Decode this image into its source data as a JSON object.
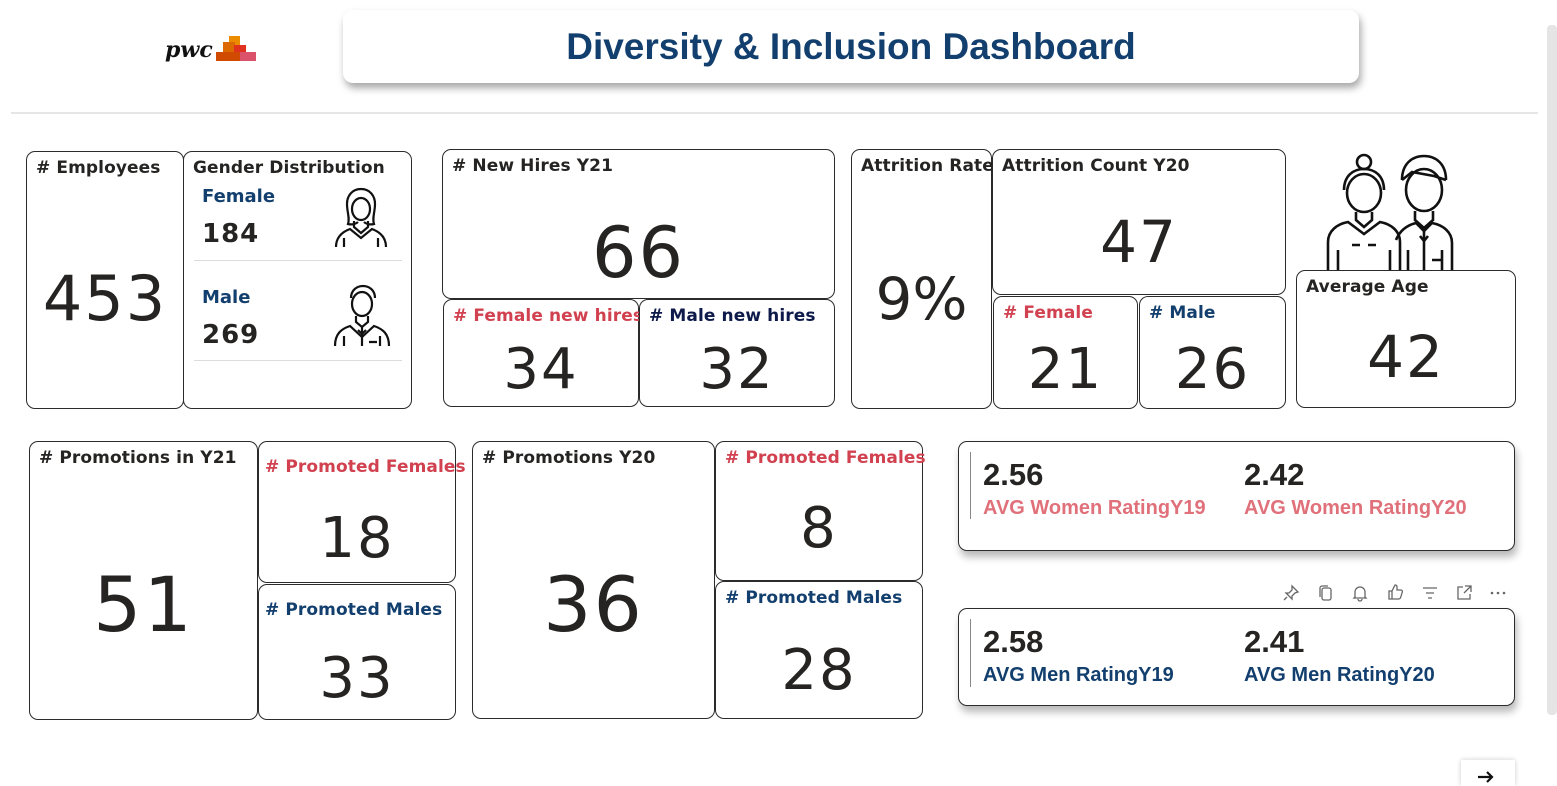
{
  "header": {
    "title": "Diversity & Inclusion Dashboard",
    "logo_text": "pwc"
  },
  "employees": {
    "label": "# Employees",
    "value": "453"
  },
  "gender": {
    "label": "Gender Distribution",
    "female_label": "Female",
    "female_value": "184",
    "male_label": "Male",
    "male_value": "269"
  },
  "new_hires": {
    "label": "# New Hires Y21",
    "value": "66",
    "female_label": "# Female new hires",
    "female_value": "34",
    "male_label": "# Male new hires",
    "male_value": "32"
  },
  "attrition": {
    "rate_label": "Attrition Rate",
    "rate_value": "9%",
    "count_label": "Attrition Count Y20",
    "count_value": "47",
    "female_label": "# Female",
    "female_value": "21",
    "male_label": "# Male",
    "male_value": "26"
  },
  "age": {
    "label": "Average Age",
    "value": "42"
  },
  "promotions_y21": {
    "label": "# Promotions in Y21",
    "value": "51",
    "female_label": "# Promoted Females",
    "female_value": "18",
    "male_label": "# Promoted Males",
    "male_value": "33"
  },
  "promotions_y20": {
    "label": "# Promotions Y20",
    "value": "36",
    "female_label": "# Promoted Females",
    "female_value": "8",
    "male_label": "# Promoted Males",
    "male_value": "28"
  },
  "women_rating": {
    "y19_value": "2.56",
    "y19_label": "AVG Women RatingY19",
    "y20_value": "2.42",
    "y20_label": "AVG Women RatingY20"
  },
  "men_rating": {
    "y19_value": "2.58",
    "y19_label": "AVG Men RatingY19",
    "y20_value": "2.41",
    "y20_label": "AVG Men RatingY20"
  },
  "toolbar": {
    "icons": [
      "pin-icon",
      "copy-icon",
      "bell-icon",
      "thumbs-up-icon",
      "filter-icon",
      "expand-icon",
      "more-icon"
    ]
  },
  "colors": {
    "title_blue": "#123f6e",
    "female_red": "#d1414f",
    "rating_pink": "#e0707a",
    "male_blue": "#123f6e"
  }
}
